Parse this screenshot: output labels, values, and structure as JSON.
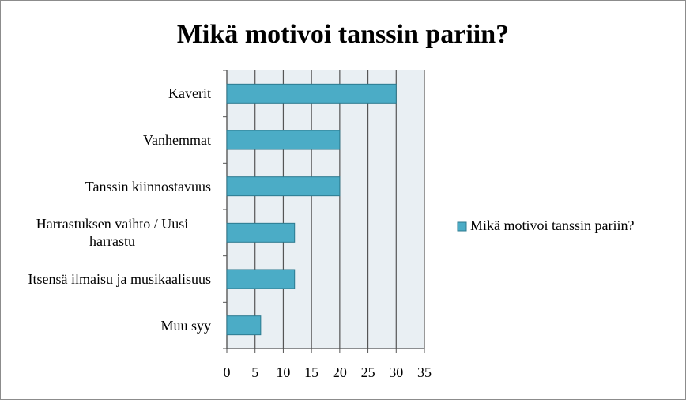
{
  "chart_data": {
    "type": "bar",
    "orientation": "horizontal",
    "title": "Mikä motivoi tanssin pariin?",
    "categories": [
      "Kaverit",
      "Vanhemmat",
      "Tanssin kiinnostavuus",
      "Harrastuksen vaihto / Uusi harrastu",
      "Itsensä ilmaisu ja musikaalisuus",
      "Muu syy"
    ],
    "series": [
      {
        "name": "Mikä motivoi tanssin pariin?",
        "color": "#4bacc6",
        "values": [
          30,
          20,
          20,
          12,
          12,
          6
        ]
      }
    ],
    "xlim": [
      0,
      35
    ],
    "xticks": [
      0,
      5,
      10,
      15,
      20,
      25,
      30,
      35
    ],
    "grid": true,
    "legend": "right"
  }
}
